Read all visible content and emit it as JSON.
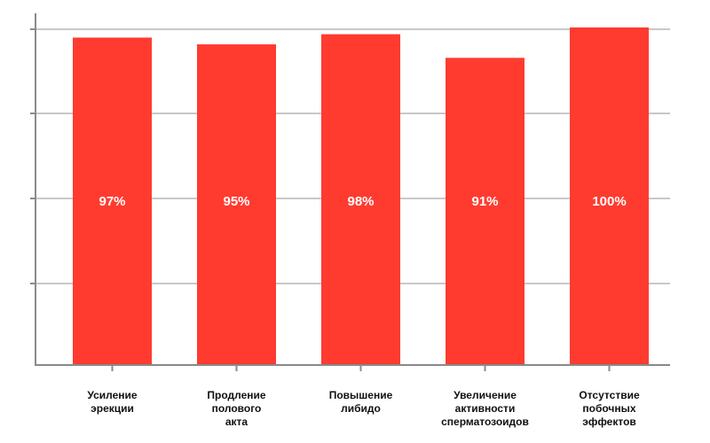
{
  "chart_data": {
    "type": "bar",
    "categories": [
      [
        "Усиление",
        "эрекции"
      ],
      [
        "Продление",
        "полового",
        "акта"
      ],
      [
        "Повышение",
        "либидо"
      ],
      [
        "Увеличение",
        "активности",
        "сперматозоидов"
      ],
      [
        "Отсутствие",
        "побочных",
        "эффектов"
      ]
    ],
    "values": [
      97,
      95,
      98,
      91,
      100
    ],
    "data_labels": [
      "97%",
      "95%",
      "98%",
      "91%",
      "100%"
    ],
    "ylim": [
      0,
      100
    ],
    "grid": true,
    "bar_color": "#ff3b30",
    "grid_color": "#c8c8c8",
    "axis_color": "#8a8a8a"
  }
}
